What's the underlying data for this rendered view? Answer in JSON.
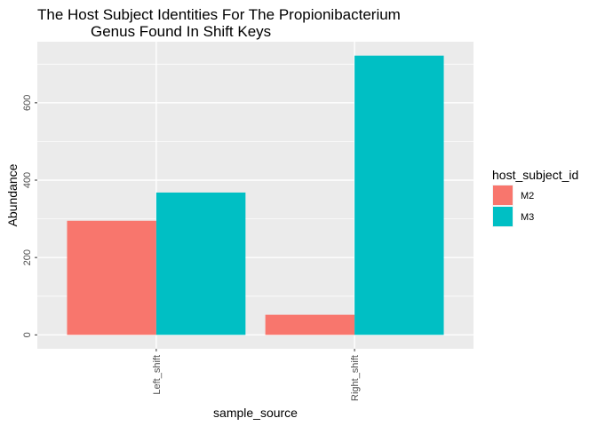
{
  "chart_data": {
    "type": "bar",
    "title_lines": [
      "The Host Subject Identities For The Propionibacterium",
      "Genus Found In Shift Keys"
    ],
    "xlabel": "sample_source",
    "ylabel": "Abundance",
    "categories": [
      "Left_shift",
      "Right_shift"
    ],
    "series": [
      {
        "name": "M2",
        "color": "#F8766D",
        "values": [
          295,
          52
        ]
      },
      {
        "name": "M3",
        "color": "#00BFC4",
        "values": [
          368,
          722
        ]
      }
    ],
    "yticks": [
      0,
      200,
      400,
      600
    ],
    "ylim": [
      -36,
      758
    ],
    "legend": {
      "title": "host_subject_id",
      "position": "right"
    },
    "grid": true,
    "panel_background": "#EBEBEB",
    "grid_color": "#FFFFFF"
  }
}
